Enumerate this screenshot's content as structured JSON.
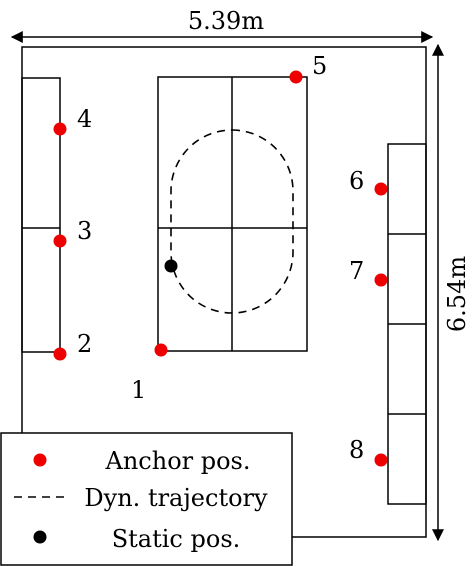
{
  "dimensions": {
    "width_label": "5.39m",
    "height_label": "6.54m"
  },
  "anchors": [
    {
      "id": "1",
      "label": "1"
    },
    {
      "id": "2",
      "label": "2"
    },
    {
      "id": "3",
      "label": "3"
    },
    {
      "id": "4",
      "label": "4"
    },
    {
      "id": "5",
      "label": "5"
    },
    {
      "id": "6",
      "label": "6"
    },
    {
      "id": "7",
      "label": "7"
    },
    {
      "id": "8",
      "label": "8"
    }
  ],
  "legend": {
    "anchor": "Anchor pos.",
    "trajectory": "Dyn. trajectory",
    "static": "Static pos."
  },
  "colors": {
    "anchor": "#ee0000",
    "static": "#000000",
    "line": "#000000"
  }
}
